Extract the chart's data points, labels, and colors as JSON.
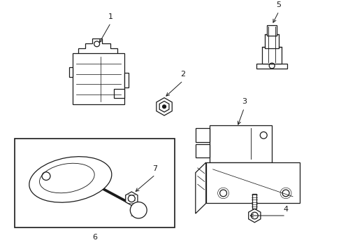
{
  "background_color": "#ffffff",
  "line_color": "#1a1a1a",
  "fig_width": 4.89,
  "fig_height": 3.6,
  "dpi": 100,
  "component_lw": 0.9
}
